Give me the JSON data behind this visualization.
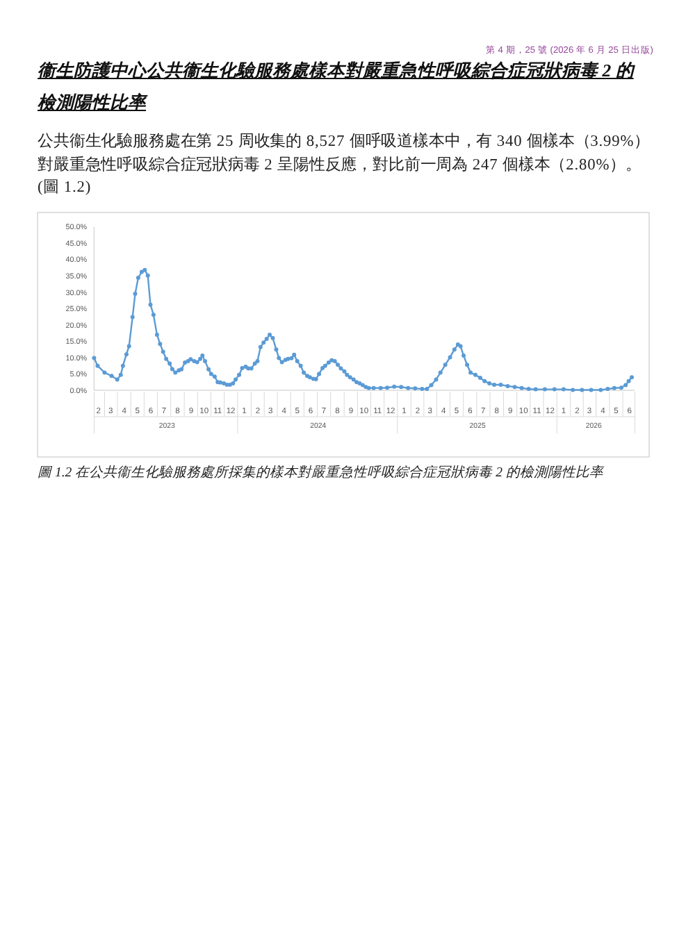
{
  "chart_data": {
    "type": "line",
    "title": "衞生防護中心公共衞生化驗服務處樣本對嚴重急性呼吸綜合症冠狀病毒 2 的檢測陽性比率",
    "subtitle": "公共衞生化驗服務處在第 25 周收集的 8,527 個呼吸道樣本中，有 340 個樣本（3.99%）對嚴重急性呼吸綜合症冠狀病毒 2 呈陽性反應，對比前一周為 247 個樣本（2.80%）。(圖 1.2)",
    "annotations": [
      "第 4 期，25 號 (2026 年 6 月 25 日出版)",
      "圖 1.2 在公共衞生化驗服務處所採集的樣本對嚴重急性呼吸綜合症冠狀病毒 2 的檢測陽性比率"
    ],
    "x": [
      "2023-02-05",
      "2023-02-13",
      "2023-03-01",
      "2023-03-17",
      "2023-03-30",
      "2023-04-07",
      "2023-04-12",
      "2023-04-20",
      "2023-04-26",
      "2023-05-04",
      "2023-05-10",
      "2023-05-17",
      "2023-05-25",
      "2023-06-01",
      "2023-06-08",
      "2023-06-14",
      "2023-06-21",
      "2023-06-29",
      "2023-07-06",
      "2023-07-13",
      "2023-07-20",
      "2023-07-28",
      "2023-08-03",
      "2023-08-10",
      "2023-08-18",
      "2023-08-24",
      "2023-09-01",
      "2023-09-08",
      "2023-09-14",
      "2023-09-22",
      "2023-09-29",
      "2023-10-06",
      "2023-10-11",
      "2023-10-17",
      "2023-10-25",
      "2023-10-31",
      "2023-11-08",
      "2023-11-15",
      "2023-11-21",
      "2023-11-29",
      "2023-12-06",
      "2023-12-13",
      "2023-12-20",
      "2023-12-26",
      "2024-01-03",
      "2024-01-10",
      "2024-01-18",
      "2024-01-24",
      "2024-01-31",
      "2024-02-08",
      "2024-02-14",
      "2024-02-21",
      "2024-02-28",
      "2024-03-06",
      "2024-03-13",
      "2024-03-20",
      "2024-03-28",
      "2024-04-03",
      "2024-04-10",
      "2024-04-18",
      "2024-04-24",
      "2024-05-02",
      "2024-05-08",
      "2024-05-15",
      "2024-05-23",
      "2024-05-30",
      "2024-06-07",
      "2024-06-13",
      "2024-06-21",
      "2024-06-27",
      "2024-07-04",
      "2024-07-12",
      "2024-07-18",
      "2024-07-26",
      "2024-08-02",
      "2024-08-09",
      "2024-08-16",
      "2024-08-23",
      "2024-08-31",
      "2024-09-06",
      "2024-09-13",
      "2024-09-21",
      "2024-09-28",
      "2024-10-05",
      "2024-10-12",
      "2024-10-19",
      "2024-10-26",
      "2024-11-06",
      "2024-11-22",
      "2024-12-07",
      "2024-12-23",
      "2025-01-08",
      "2025-01-24",
      "2025-02-09",
      "2025-02-25",
      "2025-03-08",
      "2025-03-18",
      "2025-03-29",
      "2025-04-08",
      "2025-04-19",
      "2025-04-30",
      "2025-05-10",
      "2025-05-18",
      "2025-05-24",
      "2025-05-31",
      "2025-06-08",
      "2025-06-16",
      "2025-06-27",
      "2025-07-08",
      "2025-07-18",
      "2025-07-29",
      "2025-08-09",
      "2025-08-24",
      "2025-09-09",
      "2025-09-25",
      "2025-10-11",
      "2025-10-27",
      "2025-11-12",
      "2025-12-03",
      "2025-12-25",
      "2026-01-15",
      "2026-02-05",
      "2026-02-26",
      "2026-03-19",
      "2026-04-10",
      "2026-04-26",
      "2026-05-11",
      "2026-05-27",
      "2026-06-06",
      "2026-06-13",
      "2026-06-20"
    ],
    "values": [
      9.9,
      7.5,
      5.4,
      4.4,
      3.3,
      4.7,
      7.5,
      11.0,
      13.5,
      22.4,
      29.5,
      34.4,
      36.2,
      36.8,
      35.1,
      26.2,
      23.1,
      17.0,
      14.2,
      11.8,
      9.6,
      8.2,
      6.5,
      5.4,
      6.1,
      6.4,
      8.5,
      8.9,
      9.5,
      8.9,
      8.6,
      9.6,
      10.6,
      8.9,
      6.4,
      5.0,
      4.2,
      2.5,
      2.4,
      2.1,
      1.7,
      1.7,
      2.1,
      3.3,
      4.7,
      6.8,
      7.2,
      6.7,
      6.7,
      8.2,
      8.9,
      13.2,
      14.6,
      15.7,
      17.0,
      16.0,
      12.5,
      9.9,
      8.6,
      9.3,
      9.6,
      9.8,
      10.9,
      8.9,
      7.5,
      5.4,
      4.4,
      4.0,
      3.5,
      3.4,
      5.0,
      6.8,
      7.5,
      8.5,
      9.2,
      8.9,
      7.8,
      6.7,
      5.8,
      4.7,
      4.0,
      3.3,
      2.5,
      2.1,
      1.6,
      1.0,
      0.7,
      0.7,
      0.7,
      0.8,
      1.1,
      1.0,
      0.7,
      0.6,
      0.4,
      0.4,
      1.6,
      3.3,
      5.4,
      7.8,
      10.1,
      12.5,
      14.0,
      13.5,
      10.6,
      7.8,
      5.4,
      4.7,
      3.8,
      2.8,
      2.1,
      1.7,
      1.7,
      1.3,
      1.0,
      0.7,
      0.4,
      0.3,
      0.3,
      0.3,
      0.3,
      0.1,
      0.1,
      0.1,
      0.1,
      0.4,
      0.7,
      0.8,
      1.6,
      2.8,
      4.0
    ],
    "color": "#5b9bd5",
    "marker": "circle",
    "line_style": "solid",
    "xlim": [
      "2023-02-05",
      "2026-06-27"
    ],
    "xticks": [
      {
        "value": "2023-02-15",
        "label": "2"
      },
      {
        "value": "2023-03-15",
        "label": "3"
      },
      {
        "value": "2023-04-15",
        "label": "4"
      },
      {
        "value": "2023-05-15",
        "label": "5"
      },
      {
        "value": "2023-06-15",
        "label": "6"
      },
      {
        "value": "2023-07-15",
        "label": "7"
      },
      {
        "value": "2023-08-15",
        "label": "8"
      },
      {
        "value": "2023-09-15",
        "label": "9"
      },
      {
        "value": "2023-10-15",
        "label": "10"
      },
      {
        "value": "2023-11-15",
        "label": "11"
      },
      {
        "value": "2023-12-15",
        "label": "12"
      },
      {
        "value": "2024-01-15",
        "label": "1"
      },
      {
        "value": "2024-02-15",
        "label": "2"
      },
      {
        "value": "2024-03-15",
        "label": "3"
      },
      {
        "value": "2024-04-15",
        "label": "4"
      },
      {
        "value": "2024-05-15",
        "label": "5"
      },
      {
        "value": "2024-06-15",
        "label": "6"
      },
      {
        "value": "2024-07-15",
        "label": "7"
      },
      {
        "value": "2024-08-15",
        "label": "8"
      },
      {
        "value": "2024-09-15",
        "label": "9"
      },
      {
        "value": "2024-10-15",
        "label": "10"
      },
      {
        "value": "2024-11-15",
        "label": "11"
      },
      {
        "value": "2024-12-15",
        "label": "12"
      },
      {
        "value": "2025-01-15",
        "label": "1"
      },
      {
        "value": "2025-02-15",
        "label": "2"
      },
      {
        "value": "2025-03-15",
        "label": "3"
      },
      {
        "value": "2025-04-15",
        "label": "4"
      },
      {
        "value": "2025-05-15",
        "label": "5"
      },
      {
        "value": "2025-06-15",
        "label": "6"
      },
      {
        "value": "2025-07-15",
        "label": "7"
      },
      {
        "value": "2025-08-15",
        "label": "8"
      },
      {
        "value": "2025-09-15",
        "label": "9"
      },
      {
        "value": "2025-10-15",
        "label": "10"
      },
      {
        "value": "2025-11-15",
        "label": "11"
      },
      {
        "value": "2025-12-15",
        "label": "12"
      },
      {
        "value": "2026-01-15",
        "label": "1"
      },
      {
        "value": "2026-02-15",
        "label": "2"
      },
      {
        "value": "2026-03-15",
        "label": "3"
      },
      {
        "value": "2026-04-15",
        "label": "4"
      },
      {
        "value": "2026-05-15",
        "label": "5"
      },
      {
        "value": "2026-06-15",
        "label": "6"
      }
    ],
    "x2lim": [
      "2023-02-05",
      "2026-06-27"
    ],
    "x2ticks": [
      {
        "value": "2023-07-22",
        "label": "2023"
      },
      {
        "value": "2024-07-02",
        "label": "2024"
      },
      {
        "value": "2025-07-02",
        "label": "2025"
      },
      {
        "value": "2026-03-25",
        "label": "2026"
      }
    ],
    "ylim": [
      0,
      50
    ],
    "yticks": [
      {
        "value": 0,
        "label": "0.0%"
      },
      {
        "value": 5,
        "label": "5.0%"
      },
      {
        "value": 10,
        "label": "10.0%"
      },
      {
        "value": 15,
        "label": "15.0%"
      },
      {
        "value": 20,
        "label": "20.0%"
      },
      {
        "value": 25,
        "label": "25.0%"
      },
      {
        "value": 30,
        "label": "30.0%"
      },
      {
        "value": 35,
        "label": "35.0%"
      },
      {
        "value": 40,
        "label": "40.0%"
      },
      {
        "value": 45,
        "label": "45.0%"
      },
      {
        "value": 50,
        "label": "50.0%"
      }
    ]
  }
}
